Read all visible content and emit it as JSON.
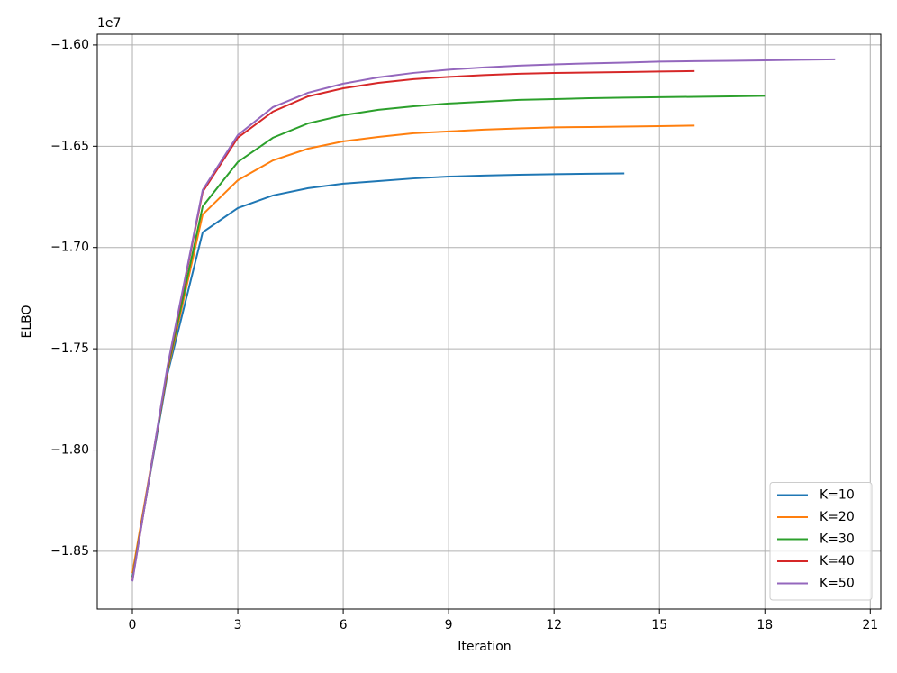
{
  "chart_data": {
    "type": "line",
    "x_label": "Iteration",
    "y_label": "ELBO",
    "y_offset_label": "1e7",
    "x": [
      0,
      1,
      2,
      3,
      4,
      5,
      6,
      7,
      8,
      9,
      10,
      11,
      12,
      13,
      14,
      15,
      16,
      17,
      18,
      19,
      20
    ],
    "series": [
      {
        "name": "K=10",
        "color": "#1f77b4",
        "values": [
          -1.8625,
          -1.7624,
          -1.6925,
          -1.6805,
          -1.6743,
          -1.6707,
          -1.6685,
          -1.6672,
          -1.6659,
          -1.665,
          -1.6645,
          -1.6641,
          -1.6638,
          -1.6636,
          -1.6634,
          null,
          null,
          null,
          null,
          null,
          null
        ]
      },
      {
        "name": "K=20",
        "color": "#ff7f0e",
        "values": [
          -1.8608,
          -1.7611,
          -1.6837,
          -1.6668,
          -1.657,
          -1.6512,
          -1.6476,
          -1.6454,
          -1.6436,
          -1.6427,
          -1.6418,
          -1.6412,
          -1.6407,
          -1.6405,
          -1.6403,
          -1.6401,
          -1.6398,
          null,
          null,
          null,
          null
        ]
      },
      {
        "name": "K=30",
        "color": "#2ca02c",
        "values": [
          -1.8634,
          -1.7602,
          -1.6797,
          -1.6578,
          -1.6458,
          -1.6387,
          -1.6347,
          -1.632,
          -1.6303,
          -1.6289,
          -1.628,
          -1.6271,
          -1.6267,
          -1.6263,
          -1.626,
          -1.6258,
          -1.6256,
          -1.6254,
          -1.6251,
          null,
          null
        ]
      },
      {
        "name": "K=40",
        "color": "#d62728",
        "values": [
          -1.8643,
          -1.7593,
          -1.6725,
          -1.6458,
          -1.6329,
          -1.6254,
          -1.6214,
          -1.6187,
          -1.6169,
          -1.6158,
          -1.6149,
          -1.6142,
          -1.6138,
          -1.6136,
          -1.6134,
          -1.6131,
          -1.6129,
          null,
          null,
          null,
          null
        ]
      },
      {
        "name": "K=50",
        "color": "#9467bd",
        "values": [
          -1.8648,
          -1.7584,
          -1.6716,
          -1.6445,
          -1.6307,
          -1.6236,
          -1.6191,
          -1.616,
          -1.6138,
          -1.6122,
          -1.6111,
          -1.6102,
          -1.6096,
          -1.6091,
          -1.6087,
          -1.6082,
          -1.608,
          -1.6078,
          -1.6076,
          -1.6073,
          -1.6071
        ]
      }
    ],
    "xlim": [
      -1,
      21.3
    ],
    "xticks": [
      0,
      3,
      6,
      9,
      12,
      15,
      18,
      21
    ],
    "ylim": [
      -1.8785,
      -1.5947
    ],
    "yticks": [
      {
        "value": -1.85,
        "label": "−1.85"
      },
      {
        "value": -1.8,
        "label": "−1.80"
      },
      {
        "value": -1.75,
        "label": "−1.75"
      },
      {
        "value": -1.7,
        "label": "−1.70"
      },
      {
        "value": -1.65,
        "label": "−1.65"
      },
      {
        "value": -1.6,
        "label": "−1.60"
      }
    ],
    "grid": true,
    "legend": "lower right"
  }
}
